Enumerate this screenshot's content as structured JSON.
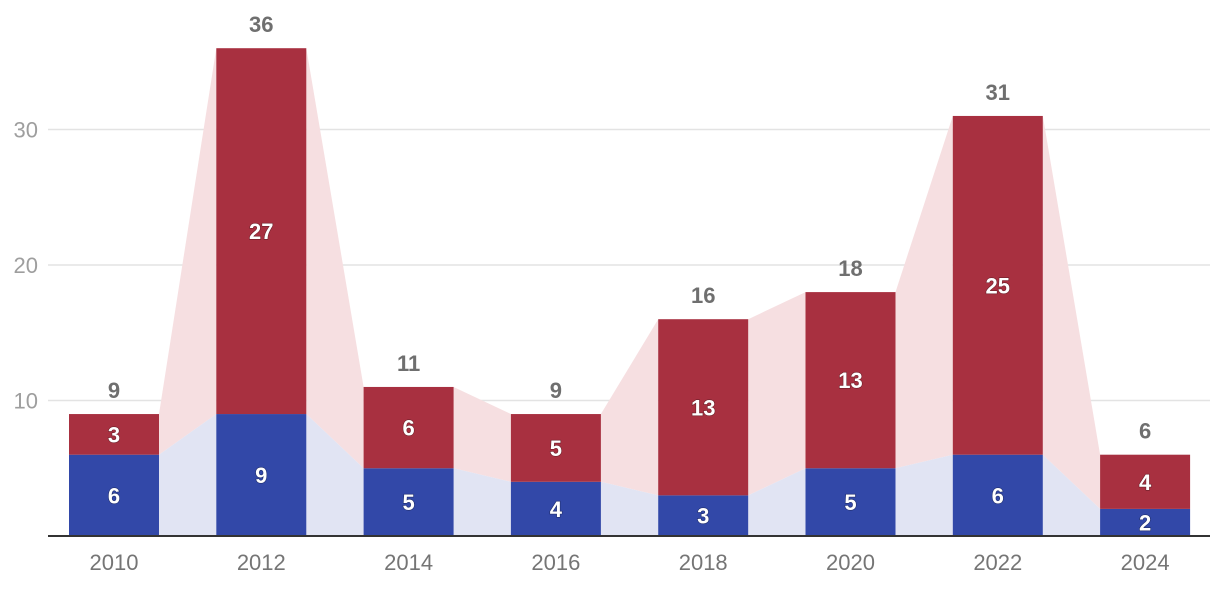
{
  "chart_data": {
    "type": "bar",
    "stacked": true,
    "categories": [
      "2010",
      "2012",
      "2014",
      "2016",
      "2018",
      "2020",
      "2022",
      "2024"
    ],
    "series": [
      {
        "name": "bottom",
        "color": "#3248a8",
        "band_color": "#e1e4f3",
        "values": [
          6,
          9,
          5,
          4,
          3,
          5,
          6,
          2
        ]
      },
      {
        "name": "top",
        "color": "#a83040",
        "band_color": "#f6dfe1",
        "values": [
          3,
          27,
          6,
          5,
          13,
          13,
          25,
          4
        ]
      }
    ],
    "totals": [
      9,
      36,
      11,
      9,
      16,
      18,
      31,
      6
    ],
    "yticks": [
      10,
      20,
      30
    ],
    "ylim": [
      0,
      36
    ],
    "grid": true,
    "title": "",
    "xlabel": "",
    "ylabel": ""
  }
}
